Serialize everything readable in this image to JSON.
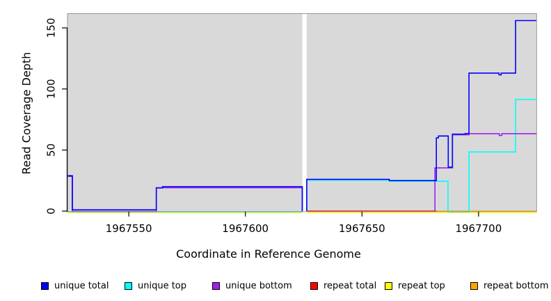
{
  "x_axis": {
    "label": "Coordinate in Reference Genome",
    "ticks": [
      1967550,
      1967600,
      1967650,
      1967700
    ]
  },
  "y_axis": {
    "label": "Read Coverage Depth",
    "ticks": [
      0,
      50,
      100,
      150
    ]
  },
  "legend": {
    "items": [
      {
        "label": "unique total",
        "color": "#0000FF"
      },
      {
        "label": "unique top",
        "color": "#00FFFF"
      },
      {
        "label": "unique bottom",
        "color": "#A020F0"
      },
      {
        "label": "repeat total",
        "color": "#FF0000"
      },
      {
        "label": "repeat top",
        "color": "#FFFF00"
      },
      {
        "label": "repeat bottom",
        "color": "#FFA500"
      }
    ]
  },
  "chart_data": {
    "type": "line",
    "title": "",
    "xlabel": "Coordinate in Reference Genome",
    "ylabel": "Read Coverage Depth",
    "xlim": [
      1967523.7,
      1967724.9
    ],
    "ylim": [
      -0.46,
      161.7
    ],
    "x_ticks": [
      1967550,
      1967600,
      1967650,
      1967700
    ],
    "y_ticks": [
      0,
      50,
      100,
      150
    ],
    "grid": false,
    "plot_background": "#d9d9d9",
    "border_color": "#969696",
    "masked_region": [
      1967624.4,
      1967626.3
    ],
    "series": [
      {
        "name": "repeat top",
        "color": "#FFFF00",
        "segments": [
          [
            [
              1967523.8,
              0
            ],
            [
              1967624.4,
              0
            ]
          ],
          [
            [
              1967626.3,
              0
            ],
            [
              1967724.9,
              0
            ]
          ]
        ]
      },
      {
        "name": "repeat bottom",
        "color": "#FFA500",
        "segments": [
          [
            [
              1967681.9,
              0
            ],
            [
              1967724.9,
              0
            ]
          ]
        ]
      },
      {
        "name": "repeat total",
        "color": "#FF0000",
        "segments": [
          [
            [
              1967626.3,
              0
            ],
            [
              1967681.9,
              0
            ]
          ]
        ]
      },
      {
        "name": "unique top",
        "color": "#00FFFF",
        "segments": [
          [
            [
              1967523.8,
              0
            ],
            [
              1967624.4,
              0
            ]
          ],
          [
            [
              1967626.3,
              0
            ],
            [
              1967626.3,
              26
            ],
            [
              1967661.7,
              26
            ],
            [
              1967661.7,
              25
            ],
            [
              1967686.9,
              25
            ],
            [
              1967686.9,
              0
            ],
            [
              1967695.9,
              0
            ],
            [
              1967695.9,
              49
            ],
            [
              1967715.9,
              49
            ],
            [
              1967715.9,
              92
            ],
            [
              1967724.9,
              92
            ]
          ]
        ]
      },
      {
        "name": "unique bottom",
        "color": "#A020F0",
        "segments": [
          [
            [
              1967523.8,
              29
            ],
            [
              1967525.8,
              29
            ],
            [
              1967525.8,
              0.3
            ],
            [
              1967561.8,
              0.3
            ],
            [
              1967561.8,
              19.7
            ],
            [
              1967624.4,
              19.7
            ],
            [
              1967624.4,
              0
            ]
          ],
          [
            [
              1967681.3,
              0
            ],
            [
              1967681.3,
              36
            ],
            [
              1967688.8,
              36
            ],
            [
              1967688.8,
              63
            ],
            [
              1967695.9,
              63
            ],
            [
              1967695.9,
              64
            ],
            [
              1967708.9,
              64
            ],
            [
              1967708.9,
              62.5
            ],
            [
              1967710.0,
              62.5
            ],
            [
              1967710.0,
              64
            ],
            [
              1967724.9,
              64
            ]
          ]
        ]
      },
      {
        "name": "unique total",
        "color": "#0000FF",
        "segments": [
          [
            [
              1967523.8,
              29
            ],
            [
              1967525.8,
              29
            ],
            [
              1967525.8,
              1
            ],
            [
              1967561.8,
              1
            ],
            [
              1967561.8,
              19
            ],
            [
              1967564.5,
              19
            ],
            [
              1967564.5,
              20
            ],
            [
              1967624.4,
              20
            ],
            [
              1967624.4,
              0
            ]
          ],
          [
            [
              1967626.3,
              0
            ],
            [
              1967626.3,
              26
            ],
            [
              1967661.7,
              26
            ],
            [
              1967661.7,
              25
            ],
            [
              1967681.9,
              25
            ],
            [
              1967681.9,
              60
            ],
            [
              1967682.8,
              60
            ],
            [
              1967682.8,
              61.5
            ],
            [
              1967687.0,
              61.5
            ],
            [
              1967687.0,
              36
            ],
            [
              1967688.8,
              36
            ],
            [
              1967688.8,
              63
            ],
            [
              1967694.3,
              63
            ],
            [
              1967694.3,
              63.5
            ],
            [
              1967695.9,
              63.5
            ],
            [
              1967695.9,
              113
            ],
            [
              1967708.8,
              113
            ],
            [
              1967708.8,
              111.5
            ],
            [
              1967709.7,
              111.5
            ],
            [
              1967709.7,
              113
            ],
            [
              1967715.9,
              113
            ],
            [
              1967715.9,
              156
            ],
            [
              1967724.9,
              156
            ]
          ]
        ]
      }
    ]
  }
}
